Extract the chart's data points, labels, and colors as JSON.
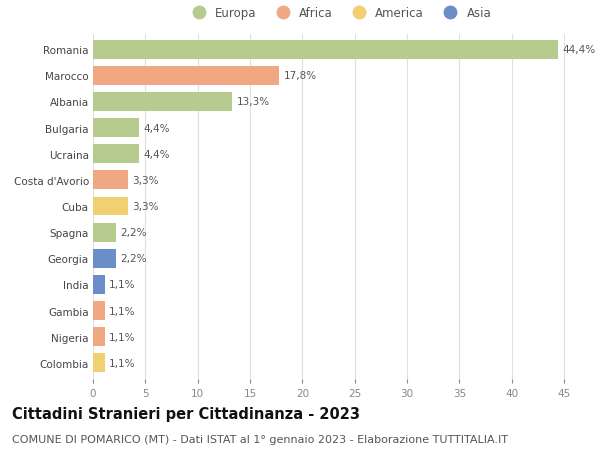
{
  "categories": [
    "Romania",
    "Marocco",
    "Albania",
    "Bulgaria",
    "Ucraina",
    "Costa d'Avorio",
    "Cuba",
    "Spagna",
    "Georgia",
    "India",
    "Gambia",
    "Nigeria",
    "Colombia"
  ],
  "values": [
    44.4,
    17.8,
    13.3,
    4.4,
    4.4,
    3.3,
    3.3,
    2.2,
    2.2,
    1.1,
    1.1,
    1.1,
    1.1
  ],
  "labels": [
    "44,4%",
    "17,8%",
    "13,3%",
    "4,4%",
    "4,4%",
    "3,3%",
    "3,3%",
    "2,2%",
    "2,2%",
    "1,1%",
    "1,1%",
    "1,1%",
    "1,1%"
  ],
  "continents": [
    "Europa",
    "Africa",
    "Europa",
    "Europa",
    "Europa",
    "Africa",
    "America",
    "Europa",
    "Asia",
    "Asia",
    "Africa",
    "Africa",
    "America"
  ],
  "colors": {
    "Europa": "#b5cc8e",
    "Africa": "#f0a882",
    "America": "#f0d070",
    "Asia": "#6a8fc8"
  },
  "xlim": [
    0,
    47
  ],
  "xticks": [
    0,
    5,
    10,
    15,
    20,
    25,
    30,
    35,
    40,
    45
  ],
  "title": "Cittadini Stranieri per Cittadinanza - 2023",
  "subtitle": "COMUNE DI POMARICO (MT) - Dati ISTAT al 1° gennaio 2023 - Elaborazione TUTTITALIA.IT",
  "background_color": "#ffffff",
  "grid_color": "#e0e0e0",
  "bar_height": 0.72,
  "title_fontsize": 10.5,
  "subtitle_fontsize": 8,
  "label_fontsize": 7.5,
  "tick_fontsize": 7.5,
  "legend_fontsize": 8.5,
  "legend_marker_size": 10
}
